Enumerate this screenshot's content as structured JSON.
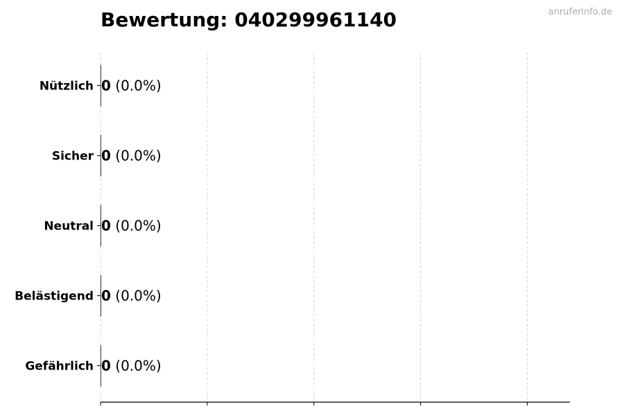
{
  "title": "Bewertung: 040299961140",
  "watermark": "anruferinfo.de",
  "chart_data": {
    "type": "bar",
    "orientation": "horizontal",
    "categories": [
      "Nützlich",
      "Sicher",
      "Neutral",
      "Belästigend",
      "Gefährlich"
    ],
    "values": [
      0,
      0,
      0,
      0,
      0
    ],
    "data_labels": [
      {
        "count": "0",
        "percent": "(0.0%)"
      },
      {
        "count": "0",
        "percent": "(0.0%)"
      },
      {
        "count": "0",
        "percent": "(0.0%)"
      },
      {
        "count": "0",
        "percent": "(0.0%)"
      },
      {
        "count": "0",
        "percent": "(0.0%)"
      }
    ],
    "xlim": [
      0,
      4.4
    ],
    "xticks": [
      0,
      1,
      2,
      3,
      4
    ],
    "xtick_labels_shown": false,
    "grid": "x dashed",
    "bar_color": "#000000",
    "title": "Bewertung: 040299961140",
    "xlabel": "",
    "ylabel": ""
  }
}
